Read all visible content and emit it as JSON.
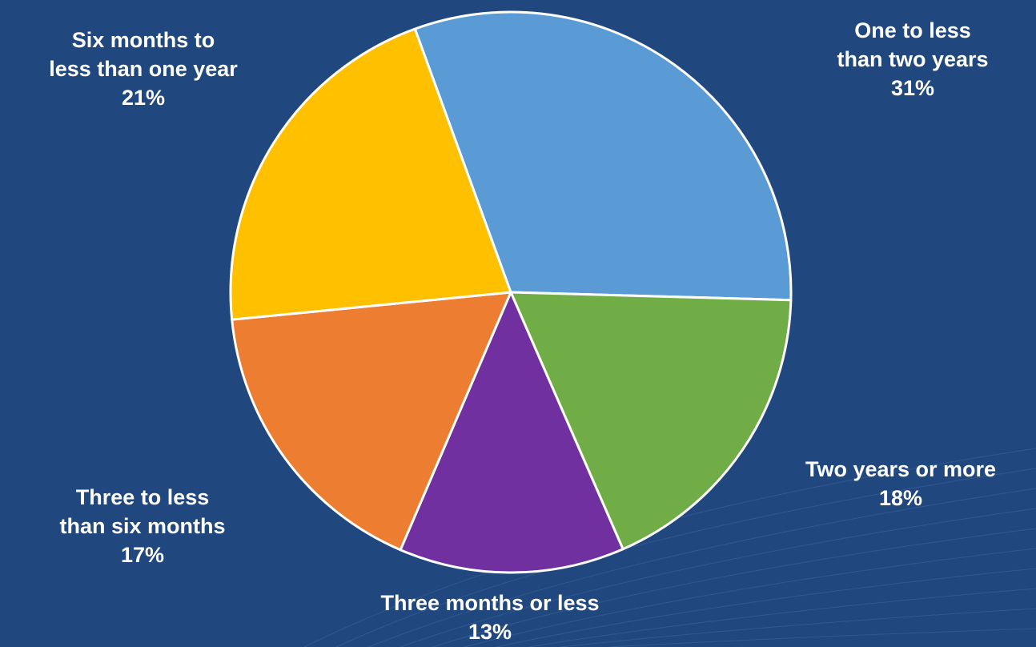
{
  "chart_data": {
    "type": "pie",
    "title": "",
    "slices": [
      {
        "label_lines": [
          "One to less",
          "than two years"
        ],
        "value": 31,
        "value_text": "31%",
        "color": "#5b9bd5"
      },
      {
        "label_lines": [
          "Two years or more"
        ],
        "value": 18,
        "value_text": "18%",
        "color": "#70ad47"
      },
      {
        "label_lines": [
          "Three months or less"
        ],
        "value": 13,
        "value_text": "13%",
        "color": "#7030a0"
      },
      {
        "label_lines": [
          "Three to less",
          "than six months"
        ],
        "value": 17,
        "value_text": "17%",
        "color": "#ed7d31"
      },
      {
        "label_lines": [
          "Six months to",
          "less than one year"
        ],
        "value": 21,
        "value_text": "21%",
        "color": "#ffc000"
      }
    ],
    "start_angle_deg": -20,
    "direction": "clockwise",
    "slice_border_color": "#ffffff",
    "background_color": "#21487e"
  }
}
